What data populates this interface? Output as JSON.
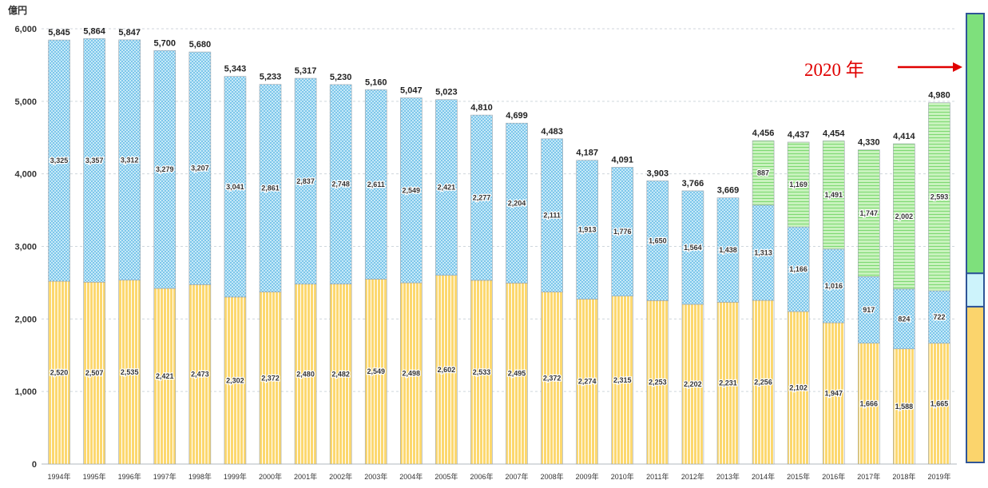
{
  "chart_data": {
    "type": "bar",
    "stacked": true,
    "unit_label": "億円",
    "ylim": [
      0,
      6000
    ],
    "yticks": [
      0,
      1000,
      2000,
      3000,
      4000,
      5000,
      6000
    ],
    "grid": true,
    "categories": [
      "1994年",
      "1995年",
      "1996年",
      "1997年",
      "1998年",
      "1999年",
      "2000年",
      "2001年",
      "2002年",
      "2003年",
      "2004年",
      "2005年",
      "2006年",
      "2007年",
      "2008年",
      "2009年",
      "2010年",
      "2011年",
      "2012年",
      "2013年",
      "2014年",
      "2015年",
      "2016年",
      "2017年",
      "2018年",
      "2019年"
    ],
    "series": [
      {
        "key": "bottom",
        "color": "#fbd46c",
        "values": [
          2520,
          2507,
          2535,
          2421,
          2473,
          2302,
          2372,
          2480,
          2482,
          2549,
          2498,
          2602,
          2533,
          2495,
          2372,
          2274,
          2315,
          2253,
          2202,
          2231,
          2256,
          2102,
          1947,
          1666,
          1588,
          1665
        ],
        "labels": [
          "2,520",
          "2,507",
          "2,535",
          "2,421",
          "2,473",
          "2,302",
          "2,372",
          "2,480",
          "2,482",
          "2,549",
          "2,498",
          "2,602",
          "2,533",
          "2,495",
          "2,372",
          "2,274",
          "2,315",
          "2,253",
          "2,202",
          "2,231",
          "2,256",
          "2,102",
          "1,947",
          "1,666",
          "1,588",
          "1,665"
        ]
      },
      {
        "key": "middle",
        "color": "#b6e0f4",
        "values": [
          3325,
          3357,
          3312,
          3279,
          3207,
          3041,
          2861,
          2837,
          2748,
          2611,
          2549,
          2421,
          2277,
          2204,
          2111,
          1913,
          1776,
          1650,
          1564,
          1438,
          1313,
          1166,
          1016,
          917,
          824,
          722
        ],
        "labels": [
          "3,325",
          "3,357",
          "3,312",
          "3,279",
          "3,207",
          "3,041",
          "2,861",
          "2,837",
          "2,748",
          "2,611",
          "2,549",
          "2,421",
          "2,277",
          "2,204",
          "2,111",
          "1,913",
          "1,776",
          "1,650",
          "1,564",
          "1,438",
          "1,313",
          "1,166",
          "1,016",
          "917",
          "824",
          "722"
        ]
      },
      {
        "key": "top",
        "color": "#a6e89a",
        "values": [
          0,
          0,
          0,
          0,
          0,
          0,
          0,
          0,
          0,
          0,
          0,
          0,
          0,
          0,
          0,
          0,
          0,
          0,
          0,
          0,
          887,
          1169,
          1491,
          1747,
          2002,
          2593
        ],
        "labels": [
          "",
          "",
          "",
          "",
          "",
          "",
          "",
          "",
          "",
          "",
          "",
          "",
          "",
          "",
          "",
          "",
          "",
          "",
          "",
          "",
          "887",
          "1,169",
          "1,491",
          "1,747",
          "2,002",
          "2,593"
        ]
      }
    ],
    "totals": [
      5845,
      5864,
      5847,
      5700,
      5680,
      5343,
      5233,
      5317,
      5230,
      5160,
      5047,
      5023,
      4810,
      4699,
      4483,
      4187,
      4091,
      3903,
      3766,
      3669,
      4456,
      4437,
      4454,
      4330,
      4414,
      4980
    ],
    "total_labels": [
      "5,845",
      "5,864",
      "5,847",
      "5,700",
      "5,680",
      "5,343",
      "5,233",
      "5,317",
      "5,230",
      "5,160",
      "5,047",
      "5,023",
      "4,810",
      "4,699",
      "4,483",
      "4,187",
      "4,091",
      "3,903",
      "3,766",
      "3,669",
      "4,456",
      "4,437",
      "4,454",
      "4,330",
      "4,414",
      "4,980"
    ],
    "ytick_labels": [
      "0",
      "1,000",
      "2,000",
      "3,000",
      "4,000",
      "5,000",
      "6,000"
    ]
  },
  "annotation": {
    "text": "2020 年",
    "text_color": "#e00000",
    "arrow_color": "#e00000",
    "bar_border_color": "#2f5597",
    "bar_segments": [
      {
        "color": "#fbd46c",
        "value": 2100
      },
      {
        "color": "#cdf3fb",
        "value": 450
      },
      {
        "color": "#7ee07c",
        "value": 3500
      }
    ]
  }
}
